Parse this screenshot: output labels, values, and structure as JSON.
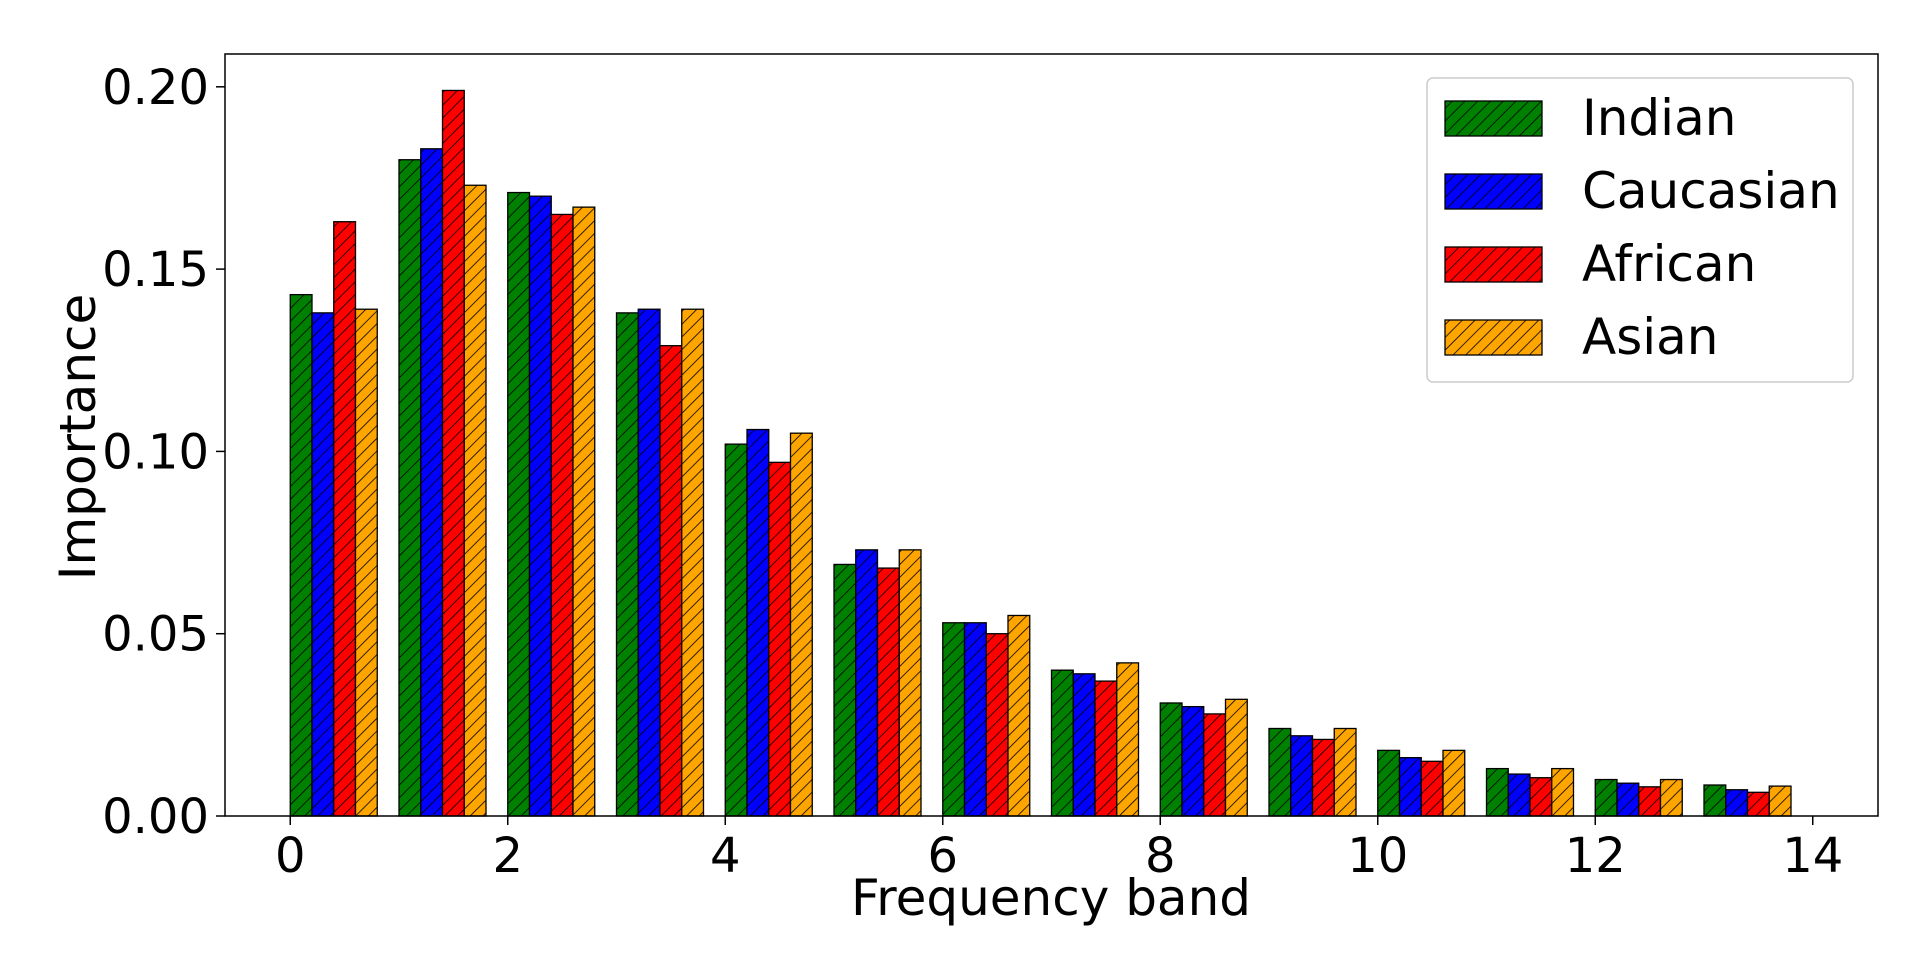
{
  "chart_data": {
    "type": "bar",
    "title": "",
    "xlabel": "Frequency band",
    "ylabel": "Importance",
    "x": [
      0,
      1,
      2,
      3,
      4,
      5,
      6,
      7,
      8,
      9,
      10,
      11,
      12,
      13
    ],
    "xlim": [
      -0.6,
      14.6
    ],
    "ylim": [
      0,
      0.209
    ],
    "xticks": [
      0,
      2,
      4,
      6,
      8,
      10,
      12,
      14
    ],
    "xtick_labels": [
      "0",
      "2",
      "4",
      "6",
      "8",
      "10",
      "12",
      "14"
    ],
    "yticks": [
      0,
      0.05,
      0.1,
      0.15,
      0.2
    ],
    "ytick_labels": [
      "0.00",
      "0.05",
      "0.10",
      "0.15",
      "0.20"
    ],
    "grid": false,
    "legend_position": "top-right",
    "hatch": "diagonal",
    "series": [
      {
        "name": "Indian",
        "color": "#008000",
        "values": [
          0.143,
          0.18,
          0.171,
          0.138,
          0.102,
          0.069,
          0.053,
          0.04,
          0.031,
          0.024,
          0.018,
          0.013,
          0.01,
          0.0085
        ]
      },
      {
        "name": "Caucasian",
        "color": "#0000ff",
        "values": [
          0.138,
          0.183,
          0.17,
          0.139,
          0.106,
          0.073,
          0.053,
          0.039,
          0.03,
          0.022,
          0.016,
          0.0115,
          0.009,
          0.0072
        ]
      },
      {
        "name": "African",
        "color": "#ff0000",
        "values": [
          0.163,
          0.199,
          0.165,
          0.129,
          0.097,
          0.068,
          0.05,
          0.037,
          0.028,
          0.021,
          0.015,
          0.0105,
          0.008,
          0.0065
        ]
      },
      {
        "name": "Asian",
        "color": "#ffa500",
        "values": [
          0.139,
          0.173,
          0.167,
          0.139,
          0.105,
          0.073,
          0.055,
          0.042,
          0.032,
          0.024,
          0.018,
          0.013,
          0.01,
          0.0082
        ]
      }
    ]
  }
}
